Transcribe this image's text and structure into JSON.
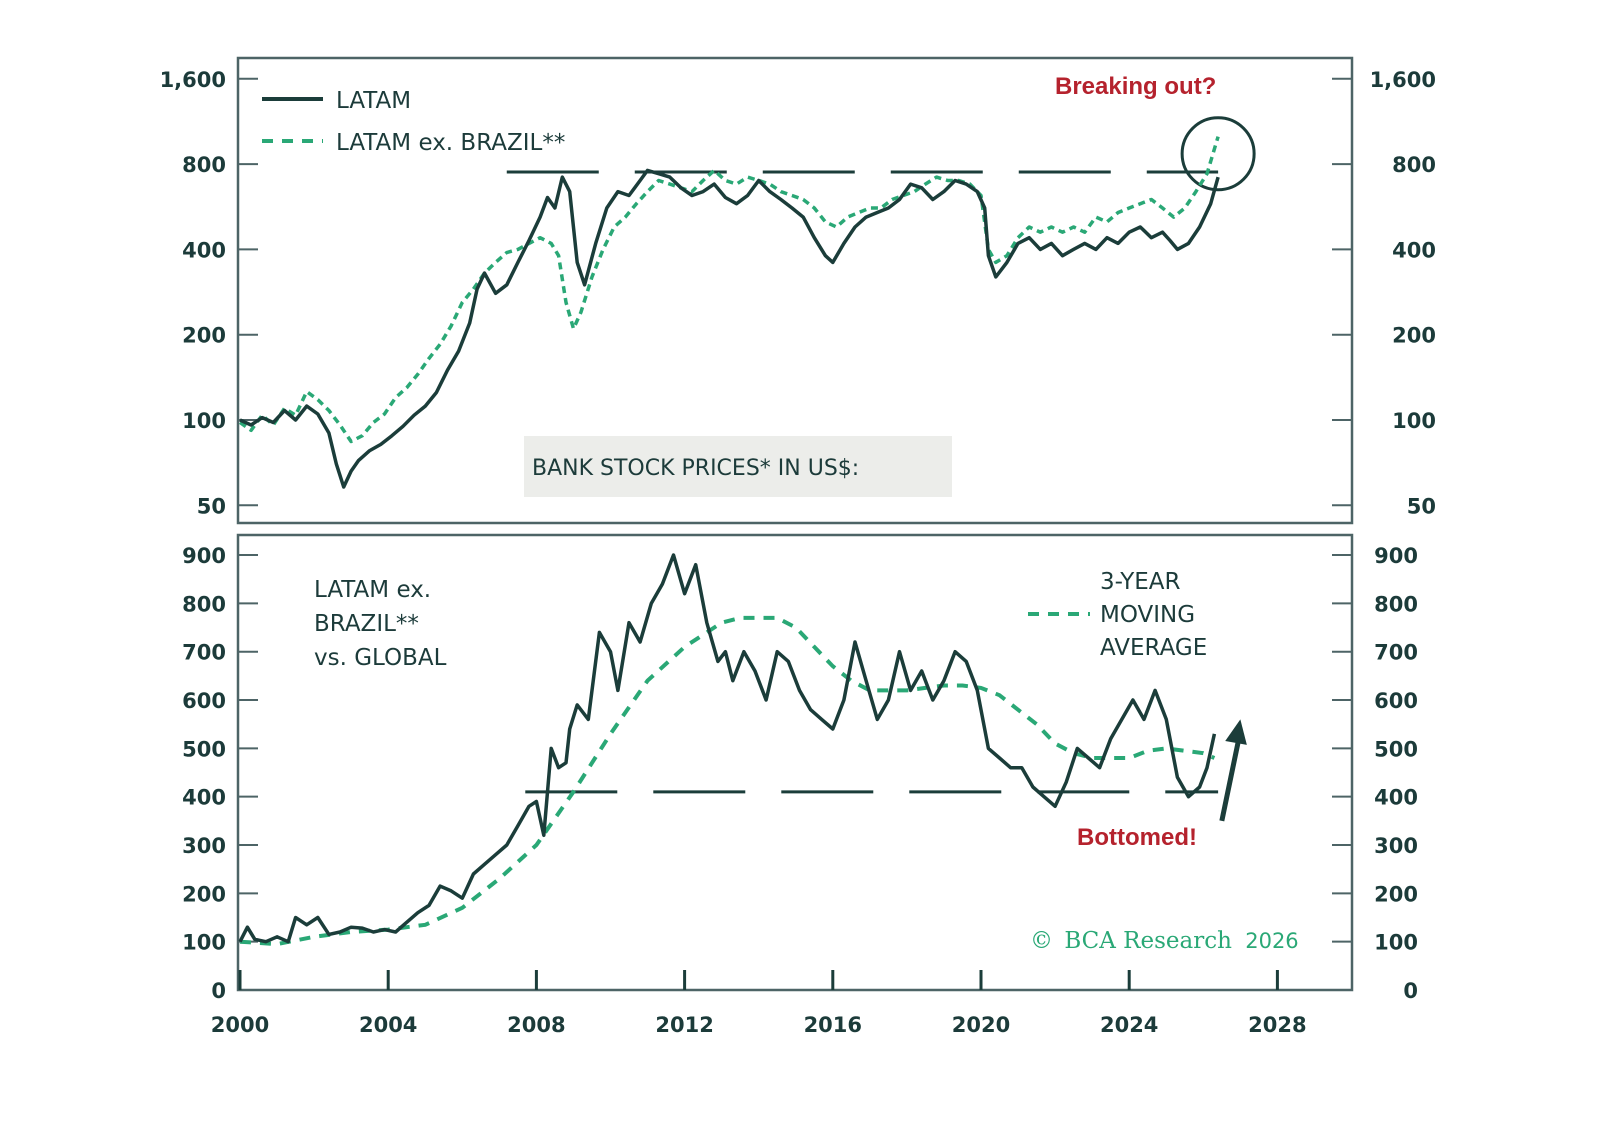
{
  "colors": {
    "dark": "#1b3d3a",
    "green": "#2aa876",
    "red": "#b5222d",
    "frame": "#4d6466",
    "title_box": "#ecedea"
  },
  "chart_data": [
    {
      "type": "line",
      "panel": "top",
      "title": "BANK STOCK PRICES* IN US$:",
      "yscale": "log2",
      "ylim": [
        45,
        1800
      ],
      "xlim": [
        2000,
        2030
      ],
      "yticks": [
        50,
        100,
        200,
        400,
        800,
        1600
      ],
      "ytick_labels": [
        "50",
        "100",
        "200",
        "400",
        "800",
        "1,600"
      ],
      "legend": [
        {
          "name": "LATAM",
          "style": "solid"
        },
        {
          "name": "LATAM ex. BRAZIL**",
          "style": "dashed"
        }
      ],
      "legend_placement": "top-left",
      "annotation": "Breaking out?",
      "resistance_level": 750,
      "resistance_x": [
        2007.2,
        2026.4
      ],
      "circle_center": {
        "x": 2026.4,
        "y": 870
      },
      "series": [
        {
          "name": "LATAM",
          "x": [
            2000.0,
            2000.3,
            2000.6,
            2000.9,
            2001.2,
            2001.5,
            2001.8,
            2002.1,
            2002.4,
            2002.6,
            2002.8,
            2003.0,
            2003.2,
            2003.5,
            2003.8,
            2004.1,
            2004.4,
            2004.7,
            2005.0,
            2005.3,
            2005.6,
            2005.9,
            2006.2,
            2006.4,
            2006.6,
            2006.9,
            2007.2,
            2007.5,
            2007.8,
            2008.1,
            2008.3,
            2008.5,
            2008.7,
            2008.9,
            2009.1,
            2009.3,
            2009.6,
            2009.9,
            2010.2,
            2010.5,
            2010.8,
            2011.0,
            2011.3,
            2011.6,
            2011.9,
            2012.2,
            2012.5,
            2012.8,
            2013.1,
            2013.4,
            2013.7,
            2014.0,
            2014.3,
            2014.6,
            2014.9,
            2015.2,
            2015.5,
            2015.8,
            2016.0,
            2016.3,
            2016.6,
            2016.9,
            2017.2,
            2017.5,
            2017.8,
            2018.1,
            2018.4,
            2018.7,
            2019.0,
            2019.3,
            2019.6,
            2019.9,
            2020.1,
            2020.2,
            2020.4,
            2020.7,
            2021.0,
            2021.3,
            2021.6,
            2021.9,
            2022.2,
            2022.5,
            2022.8,
            2023.1,
            2023.4,
            2023.7,
            2024.0,
            2024.3,
            2024.6,
            2024.9,
            2025.1,
            2025.3,
            2025.6,
            2025.9,
            2026.2,
            2026.4
          ],
          "values": [
            100,
            96,
            102,
            98,
            108,
            100,
            112,
            105,
            90,
            70,
            58,
            66,
            72,
            78,
            82,
            88,
            95,
            104,
            112,
            125,
            150,
            175,
            220,
            290,
            330,
            280,
            300,
            360,
            430,
            520,
            610,
            560,
            720,
            640,
            360,
            300,
            420,
            560,
            640,
            620,
            700,
            760,
            740,
            720,
            660,
            620,
            640,
            680,
            610,
            580,
            620,
            700,
            640,
            600,
            560,
            520,
            440,
            380,
            360,
            420,
            480,
            520,
            540,
            560,
            600,
            680,
            660,
            600,
            640,
            700,
            680,
            640,
            560,
            380,
            320,
            360,
            420,
            440,
            400,
            420,
            380,
            400,
            420,
            400,
            440,
            420,
            460,
            480,
            440,
            460,
            430,
            400,
            420,
            480,
            580,
            720
          ]
        },
        {
          "name": "LATAM ex. BRAZIL**",
          "x": [
            2000.0,
            2000.3,
            2000.6,
            2000.9,
            2001.2,
            2001.5,
            2001.8,
            2002.1,
            2002.4,
            2002.7,
            2003.0,
            2003.3,
            2003.6,
            2003.9,
            2004.2,
            2004.5,
            2004.8,
            2005.1,
            2005.4,
            2005.7,
            2006.0,
            2006.3,
            2006.6,
            2006.9,
            2007.2,
            2007.5,
            2007.8,
            2008.1,
            2008.4,
            2008.6,
            2008.8,
            2009.0,
            2009.2,
            2009.5,
            2009.8,
            2010.1,
            2010.4,
            2010.7,
            2011.0,
            2011.3,
            2011.6,
            2011.9,
            2012.2,
            2012.5,
            2012.8,
            2013.1,
            2013.4,
            2013.7,
            2014.0,
            2014.3,
            2014.6,
            2014.9,
            2015.2,
            2015.5,
            2015.8,
            2016.1,
            2016.4,
            2016.7,
            2017.0,
            2017.3,
            2017.6,
            2017.9,
            2018.2,
            2018.5,
            2018.8,
            2019.1,
            2019.4,
            2019.7,
            2020.0,
            2020.2,
            2020.4,
            2020.7,
            2021.0,
            2021.3,
            2021.6,
            2021.9,
            2022.2,
            2022.5,
            2022.8,
            2023.1,
            2023.4,
            2023.7,
            2024.0,
            2024.3,
            2024.6,
            2024.9,
            2025.2,
            2025.5,
            2025.8,
            2026.1,
            2026.4
          ],
          "values": [
            98,
            92,
            104,
            96,
            110,
            104,
            126,
            118,
            108,
            96,
            84,
            88,
            98,
            105,
            120,
            130,
            145,
            165,
            185,
            215,
            260,
            290,
            330,
            360,
            390,
            400,
            420,
            440,
            420,
            380,
            260,
            210,
            240,
            320,
            400,
            480,
            520,
            580,
            640,
            700,
            680,
            660,
            640,
            700,
            760,
            700,
            680,
            720,
            700,
            680,
            640,
            620,
            600,
            560,
            500,
            480,
            520,
            540,
            560,
            560,
            600,
            620,
            640,
            680,
            720,
            700,
            700,
            680,
            620,
            400,
            360,
            380,
            440,
            480,
            460,
            480,
            460,
            480,
            460,
            520,
            500,
            540,
            560,
            580,
            600,
            560,
            520,
            560,
            640,
            740,
            1000
          ]
        }
      ]
    },
    {
      "type": "line",
      "panel": "bottom",
      "title": "LATAM ex. BRAZIL** vs. GLOBAL",
      "yscale": "linear",
      "ylim": [
        0,
        930
      ],
      "xlim": [
        2000,
        2030
      ],
      "yticks": [
        0,
        100,
        200,
        300,
        400,
        500,
        600,
        700,
        800,
        900
      ],
      "ytick_labels": [
        "0",
        "100",
        "200",
        "300",
        "400",
        "500",
        "600",
        "700",
        "800",
        "900"
      ],
      "xticks": [
        2000,
        2004,
        2008,
        2012,
        2016,
        2020,
        2024,
        2028
      ],
      "xtick_labels": [
        "2000",
        "2004",
        "2008",
        "2012",
        "2016",
        "2020",
        "2024",
        "2028"
      ],
      "legend": [
        {
          "name": "3-YEAR MOVING AVERAGE",
          "style": "dashed"
        }
      ],
      "legend_placement": "top-right",
      "annotation": "Bottomed!",
      "support_level": 410,
      "support_x": [
        2007.7,
        2026.4
      ],
      "arrow": {
        "from": {
          "x": 2026.5,
          "y": 350
        },
        "to": {
          "x": 2027.0,
          "y": 560
        }
      },
      "series": [
        {
          "name": "LATAM ex. BRAZIL vs. GLOBAL",
          "x": [
            2000.0,
            2000.2,
            2000.4,
            2000.7,
            2001.0,
            2001.3,
            2001.5,
            2001.8,
            2002.1,
            2002.4,
            2002.7,
            2003.0,
            2003.3,
            2003.6,
            2003.9,
            2004.2,
            2004.5,
            2004.8,
            2005.1,
            2005.4,
            2005.7,
            2006.0,
            2006.3,
            2006.6,
            2006.9,
            2007.2,
            2007.5,
            2007.8,
            2008.0,
            2008.2,
            2008.4,
            2008.6,
            2008.8,
            2008.9,
            2009.1,
            2009.4,
            2009.7,
            2010.0,
            2010.2,
            2010.5,
            2010.8,
            2011.1,
            2011.4,
            2011.7,
            2012.0,
            2012.3,
            2012.6,
            2012.9,
            2013.1,
            2013.3,
            2013.6,
            2013.9,
            2014.2,
            2014.5,
            2014.8,
            2015.1,
            2015.4,
            2015.7,
            2016.0,
            2016.3,
            2016.6,
            2016.9,
            2017.2,
            2017.5,
            2017.8,
            2018.1,
            2018.4,
            2018.7,
            2019.0,
            2019.3,
            2019.6,
            2019.9,
            2020.2,
            2020.5,
            2020.8,
            2021.1,
            2021.4,
            2021.7,
            2022.0,
            2022.3,
            2022.6,
            2022.9,
            2023.2,
            2023.5,
            2023.8,
            2024.1,
            2024.4,
            2024.7,
            2025.0,
            2025.3,
            2025.6,
            2025.9,
            2026.1,
            2026.3
          ],
          "values": [
            100,
            130,
            105,
            100,
            110,
            100,
            150,
            135,
            150,
            115,
            120,
            130,
            128,
            120,
            125,
            120,
            140,
            160,
            175,
            215,
            205,
            190,
            240,
            260,
            280,
            300,
            340,
            380,
            390,
            320,
            500,
            460,
            470,
            540,
            590,
            560,
            740,
            700,
            620,
            760,
            720,
            800,
            840,
            900,
            820,
            880,
            760,
            680,
            700,
            640,
            700,
            660,
            600,
            700,
            680,
            620,
            580,
            560,
            540,
            600,
            720,
            640,
            560,
            600,
            700,
            620,
            660,
            600,
            640,
            700,
            680,
            620,
            500,
            480,
            460,
            460,
            420,
            400,
            380,
            430,
            500,
            480,
            460,
            520,
            560,
            600,
            560,
            620,
            560,
            440,
            400,
            420,
            460,
            530
          ]
        },
        {
          "name": "3-YEAR MOVING AVERAGE",
          "x": [
            2000.0,
            2001.0,
            2002.0,
            2003.0,
            2004.0,
            2005.0,
            2006.0,
            2007.0,
            2008.0,
            2009.0,
            2010.0,
            2011.0,
            2012.0,
            2013.0,
            2013.5,
            2014.0,
            2014.5,
            2015.0,
            2015.5,
            2016.0,
            2016.5,
            2017.0,
            2017.5,
            2018.0,
            2018.5,
            2019.0,
            2019.5,
            2020.0,
            2020.5,
            2021.0,
            2021.5,
            2022.0,
            2022.5,
            2023.0,
            2023.5,
            2024.0,
            2024.5,
            2025.0,
            2025.5,
            2026.0,
            2026.3
          ],
          "values": [
            100,
            95,
            110,
            120,
            125,
            135,
            170,
            230,
            300,
            410,
            530,
            640,
            710,
            760,
            770,
            770,
            770,
            750,
            710,
            670,
            640,
            620,
            620,
            620,
            625,
            630,
            630,
            625,
            610,
            580,
            550,
            510,
            490,
            480,
            480,
            480,
            495,
            500,
            495,
            490,
            480
          ]
        }
      ]
    }
  ],
  "copyright": {
    "symbol": "©",
    "brand": "BCA Research",
    "year": "2026"
  }
}
